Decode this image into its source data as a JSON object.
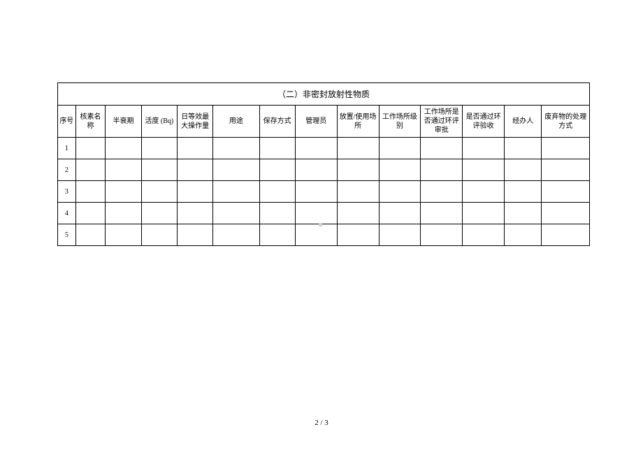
{
  "table": {
    "title": "（二）非密封放射性物质",
    "columns": [
      "序号",
      "核素名称",
      "半衰期",
      "活度 (Bq)",
      "日等效最大操作量",
      "用途",
      "保存方式",
      "管理员",
      "放置/使用场所",
      "工作场所级别",
      "工作场所是否通过环评审批",
      "是否通过环评验收",
      "经办人",
      "废弃物的处理方式"
    ],
    "rows": [
      {
        "seq": "1",
        "cells": [
          "",
          "",
          "",
          "",
          "",
          "",
          "",
          "",
          "",
          "",
          "",
          "",
          ""
        ]
      },
      {
        "seq": "2",
        "cells": [
          "",
          "",
          "",
          "",
          "",
          "",
          "",
          "",
          "",
          "",
          "",
          "",
          ""
        ]
      },
      {
        "seq": "3",
        "cells": [
          "",
          "",
          "",
          "",
          "",
          "",
          "",
          "",
          "",
          "",
          "",
          "",
          ""
        ]
      },
      {
        "seq": "4",
        "cells": [
          "",
          "",
          "",
          "",
          "",
          "",
          "",
          "",
          "",
          "",
          "",
          "",
          ""
        ]
      },
      {
        "seq": "5",
        "cells": [
          "",
          "",
          "",
          "",
          "",
          "",
          "",
          "",
          "",
          "",
          "",
          "",
          ""
        ]
      }
    ],
    "column_classes": [
      "col-seq",
      "col-name",
      "col-half",
      "col-act",
      "col-daily",
      "col-use",
      "col-store",
      "col-mgr",
      "col-place",
      "col-level",
      "col-env1",
      "col-env2",
      "col-handler",
      "col-waste"
    ]
  },
  "footer": {
    "page": "2 / 3"
  },
  "style": {
    "background_color": "#ffffff",
    "border_color": "#000000",
    "title_fontsize": 12,
    "header_fontsize": 10,
    "body_fontsize": 10,
    "footer_fontsize": 11
  }
}
